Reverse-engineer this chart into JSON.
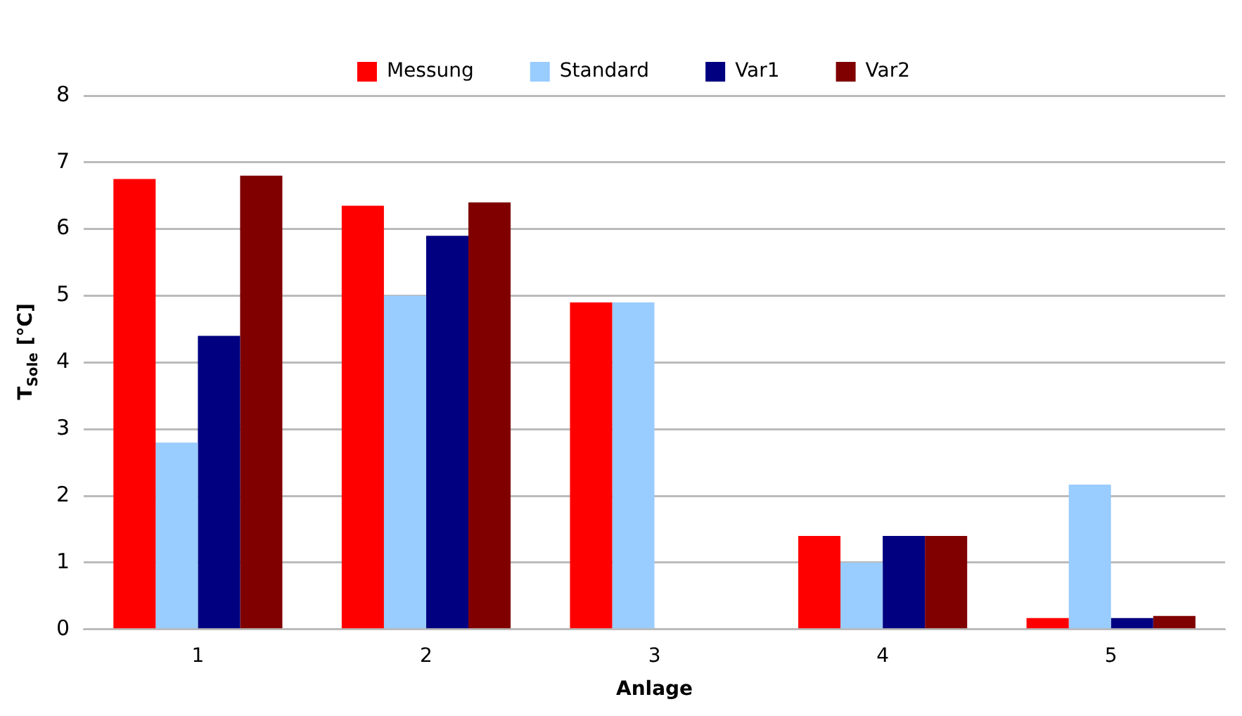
{
  "chart_data": {
    "type": "bar",
    "xlabel": "Anlage",
    "ylabel": "T$_{Sole}$ [°C]",
    "categories": [
      "1",
      "2",
      "3",
      "4",
      "5"
    ],
    "series": [
      {
        "name": "Messung",
        "color": "#ff0000",
        "values": [
          6.75,
          6.35,
          4.9,
          1.4,
          0.17
        ]
      },
      {
        "name": "Standard",
        "color": "#99ccff",
        "values": [
          2.8,
          5.0,
          4.9,
          1.0,
          2.17
        ]
      },
      {
        "name": "Var1",
        "color": "#000080",
        "values": [
          4.4,
          5.9,
          null,
          1.4,
          0.17
        ]
      },
      {
        "name": "Var2",
        "color": "#800000",
        "values": [
          6.8,
          6.4,
          null,
          1.4,
          0.2
        ]
      }
    ],
    "ylim": [
      0,
      8
    ],
    "yticks": [
      0,
      1,
      2,
      3,
      4,
      5,
      6,
      7,
      8
    ],
    "grid": "y",
    "legend": "top"
  }
}
